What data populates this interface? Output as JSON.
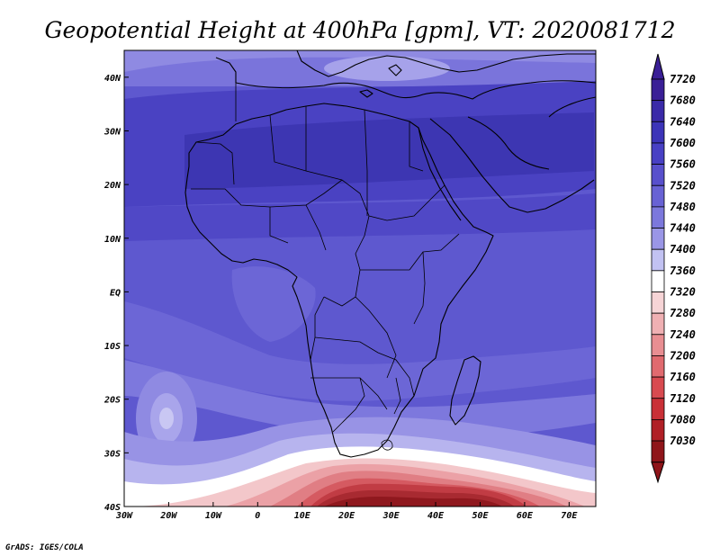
{
  "title": "Geopotential Height at 400hPa [gpm], VT: 2020081712",
  "credit": "GrADS: IGES/COLA",
  "axes": {
    "x_ticks": [
      "30W",
      "20W",
      "10W",
      "0",
      "10E",
      "20E",
      "30E",
      "40E",
      "50E",
      "60E",
      "70E"
    ],
    "y_ticks": [
      "40N",
      "30N",
      "20N",
      "10N",
      "EQ",
      "10S",
      "20S",
      "30S",
      "40S"
    ]
  },
  "colorbar": {
    "labels": [
      "7720",
      "7680",
      "7640",
      "7600",
      "7560",
      "7520",
      "7480",
      "7440",
      "7400",
      "7360",
      "7320",
      "7280",
      "7240",
      "7200",
      "7160",
      "7120",
      "7080",
      "7030"
    ],
    "colors": [
      "#3a1f96",
      "#3a2aa8",
      "#3c34b8",
      "#4840c4",
      "#5850cc",
      "#6862d4",
      "#7c78dc",
      "#9a96e6",
      "#c2c2f2",
      "#ffffff",
      "#f6d4d6",
      "#efb0b3",
      "#e88e92",
      "#e06a6f",
      "#d84a50",
      "#c93037",
      "#b01f26",
      "#8f151a"
    ]
  },
  "chart_data": {
    "type": "heatmap",
    "title": "Geopotential Height at 400hPa [gpm], VT: 2020081712",
    "variable": "Geopotential Height",
    "level": "400hPa",
    "units": "gpm",
    "valid_time": "2020081712",
    "lon_range": [
      -30,
      76
    ],
    "lat_range": [
      -40,
      45
    ],
    "contour_levels": [
      7030,
      7080,
      7120,
      7160,
      7200,
      7240,
      7280,
      7320,
      7360,
      7400,
      7440,
      7480,
      7520,
      7560,
      7600,
      7640,
      7680,
      7720
    ],
    "regions": [
      {
        "area": "Sahara / North Africa band (15N-30N)",
        "value": 7640
      },
      {
        "area": "Arabian Peninsula / Middle East",
        "value": 7640
      },
      {
        "area": "Mediterranean (north edge)",
        "value": 7520
      },
      {
        "area": "Equatorial Africa",
        "value": 7560
      },
      {
        "area": "Southern Africa interior",
        "value": 7520
      },
      {
        "area": "South Atlantic high (25S, 20W)",
        "value": 7440
      },
      {
        "area": "South of Africa (38S, 20E)",
        "value": 7080
      },
      {
        "area": "South Indian Ocean (38S, 50E)",
        "value": 7120
      }
    ]
  }
}
